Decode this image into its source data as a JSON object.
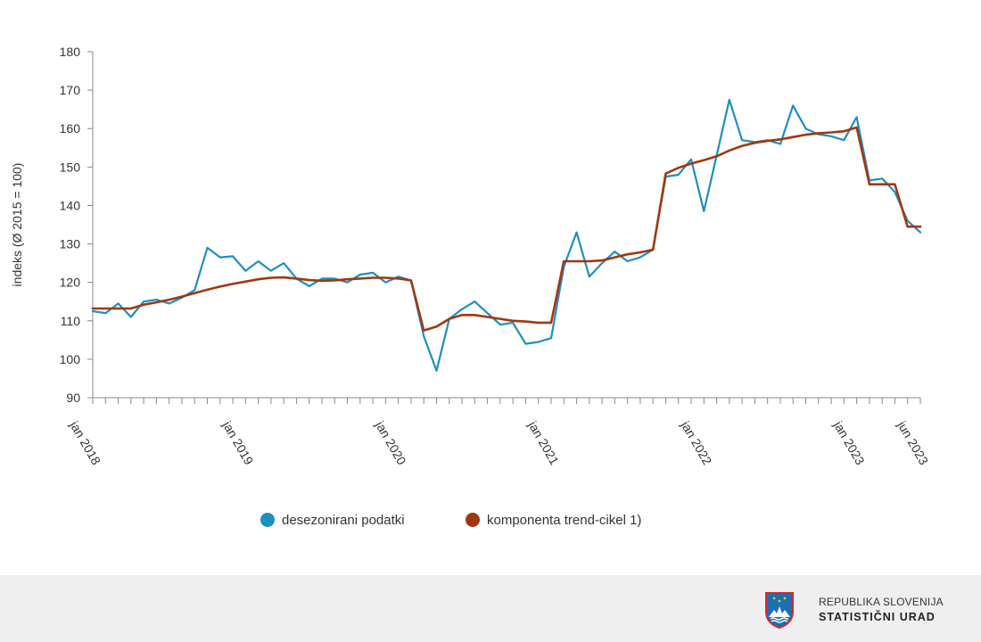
{
  "chart_data": {
    "type": "line",
    "ylabel": "indeks (Ø 2015 = 100)",
    "xlabel": "",
    "ylim": [
      90,
      180
    ],
    "yticks": [
      90,
      100,
      110,
      120,
      130,
      140,
      150,
      160,
      170,
      180
    ],
    "x_start": "jan 2018",
    "x_end": "jun 2023",
    "x_tick_labels": [
      {
        "label": "jan 2018",
        "index": 0
      },
      {
        "label": "jan 2019",
        "index": 12
      },
      {
        "label": "jan 2020",
        "index": 24
      },
      {
        "label": "jan 2021",
        "index": 36
      },
      {
        "label": "jan 2022",
        "index": 48
      },
      {
        "label": "jan 2023",
        "index": 60
      },
      {
        "label": "jun 2023",
        "index": 65
      }
    ],
    "grid": false,
    "legend_position": "bottom-center",
    "series": [
      {
        "name": "desezonirani podatki",
        "color": "#1e8fbf",
        "values": [
          112.5,
          112,
          114.5,
          111,
          115,
          115.5,
          114.5,
          116,
          118,
          129,
          126.5,
          126.8,
          123,
          125.5,
          123,
          125,
          121,
          119,
          121,
          121,
          120,
          122,
          122.5,
          120,
          121.5,
          120.5,
          106,
          97,
          110.5,
          113,
          115,
          112,
          109,
          109.5,
          104,
          104.5,
          105.5,
          124,
          133,
          121.5,
          125,
          128,
          125.5,
          126.5,
          128.5,
          147.5,
          148,
          152,
          138.5,
          153,
          167.5,
          157,
          156.5,
          157,
          156,
          166,
          160,
          158.5,
          158,
          157,
          163,
          146.5,
          147,
          143.5,
          136,
          133
        ]
      },
      {
        "name": "komponenta trend-cikel 1)",
        "color": "#a0380f",
        "values": [
          113.2,
          113.2,
          113.2,
          113.2,
          114.2,
          114.8,
          115.5,
          116.3,
          117.2,
          118.1,
          118.9,
          119.6,
          120.2,
          120.8,
          121.2,
          121.3,
          121.0,
          120.6,
          120.4,
          120.5,
          120.8,
          121.0,
          121.2,
          121.2,
          121.0,
          120.5,
          107.5,
          108.5,
          110.5,
          111.5,
          111.5,
          111.0,
          110.5,
          110.0,
          109.8,
          109.5,
          109.5,
          125.5,
          125.5,
          125.5,
          125.7,
          126.5,
          127.3,
          127.8,
          128.5,
          148.3,
          149.8,
          150.9,
          151.8,
          152.8,
          154.3,
          155.5,
          156.3,
          156.8,
          157.2,
          157.8,
          158.4,
          158.8,
          159.0,
          159.3,
          160.3,
          145.5,
          145.5,
          145.5,
          134.5,
          134.5
        ]
      }
    ]
  },
  "footer": {
    "logo_line1": "REPUBLIKA SLOVENIJA",
    "logo_line2": "STATISTIČNI URAD"
  }
}
